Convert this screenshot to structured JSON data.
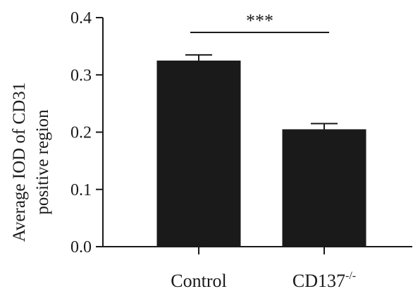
{
  "chart_data": {
    "type": "bar",
    "title": "",
    "xlabel": "",
    "ylabel": [
      "Average IOD of CD31",
      "positive region"
    ],
    "categories": [
      {
        "name": "Control",
        "sup": ""
      },
      {
        "name": "CD137",
        "sup": "-/-"
      }
    ],
    "values": [
      0.325,
      0.205
    ],
    "errors": [
      0.01,
      0.01
    ],
    "ylim": [
      0,
      0.4
    ],
    "yticks": [
      "0.0",
      "0.1",
      "0.2",
      "0.3",
      "0.4"
    ],
    "grid": false,
    "bar_color": "#1a1a1a",
    "annotations": [
      {
        "text": "***",
        "between": [
          0,
          1
        ]
      }
    ]
  }
}
